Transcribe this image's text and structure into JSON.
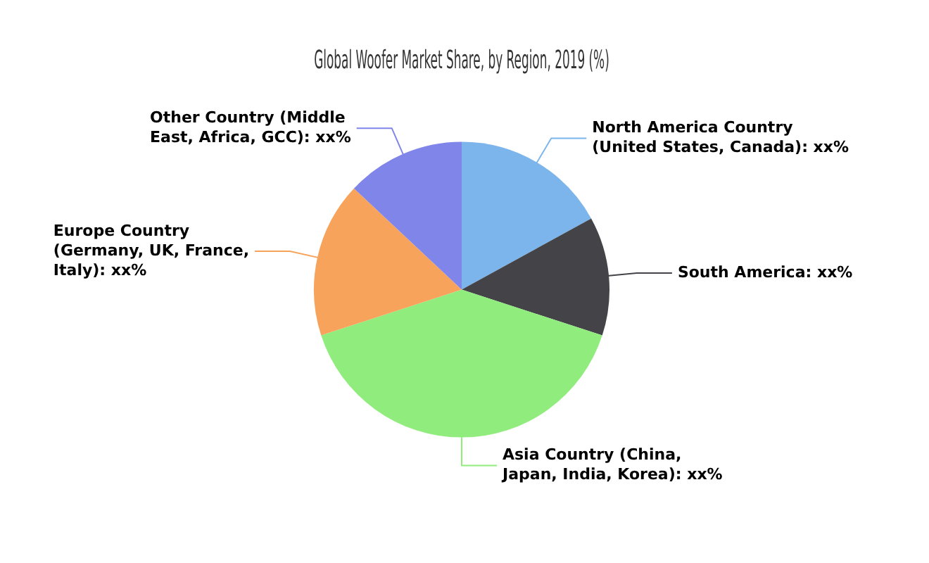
{
  "chart_data": {
    "type": "pie",
    "title": "Global Woofer Market Share, by Region, 2019 (%)",
    "categories": [
      "North America Country (United States, Canada)",
      "South America",
      "Asia Country (China, Japan, India, Korea)",
      "Europe Country (Germany, UK, France, Italy)",
      "Other Country (Middle East, Africa, GCC)"
    ],
    "values": [
      17,
      13,
      40,
      17,
      13
    ],
    "value_labels": [
      ": xx%",
      ": xx%",
      ": xx%",
      ": xx%",
      ": xx%"
    ],
    "colors": [
      "#7cb5ec",
      "#434348",
      "#90ed7d",
      "#f7a35c",
      "#8085e9"
    ],
    "legend": false
  }
}
